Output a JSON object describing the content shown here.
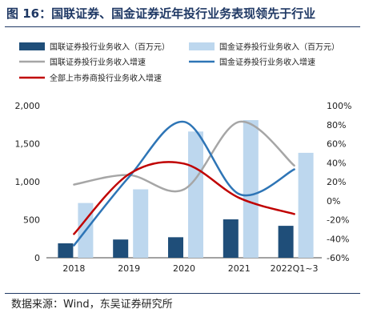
{
  "figure": {
    "title": "图 16：国联证券、国金证券近年投行业务表现领先于行业",
    "source": "数据来源：Wind，东吴证券研究所"
  },
  "colors": {
    "guolian_bar": "#1f4e79",
    "guojin_bar": "#bdd7ee",
    "guolian_line": "#a6a6a6",
    "guojin_line": "#2e75b6",
    "industry_line": "#c00000"
  },
  "chart_data": {
    "type": "bar",
    "categories": [
      "2018",
      "2019",
      "2020",
      "2021",
      "2022Q1~3"
    ],
    "y_left": {
      "min": 0,
      "max": 2000,
      "ticks": [
        0,
        500,
        1000,
        1500,
        2000
      ],
      "tick_labels": [
        "0",
        "500",
        "1,000",
        "1,500",
        "2,000"
      ]
    },
    "y_right": {
      "min": -60,
      "max": 100,
      "ticks": [
        -60,
        -40,
        -20,
        0,
        20,
        40,
        60,
        80,
        100
      ],
      "tick_labels": [
        "-60%",
        "-40%",
        "-20%",
        "0%",
        "20%",
        "40%",
        "60%",
        "80%",
        "100%"
      ]
    },
    "series": [
      {
        "name": "国联证券投行业务收入（百万元）",
        "type": "bar",
        "axis": "left",
        "values": [
          190,
          240,
          270,
          505,
          420
        ]
      },
      {
        "name": "国金证券投行业务收入（百万元）",
        "type": "bar",
        "axis": "left",
        "values": [
          720,
          900,
          1660,
          1810,
          1380
        ]
      },
      {
        "name": "国联证券投行业务收入增速",
        "type": "line",
        "axis": "right",
        "values": [
          17,
          27,
          12,
          83,
          37
        ]
      },
      {
        "name": "国金证券投行业务收入增速",
        "type": "line",
        "axis": "right",
        "values": [
          -47,
          25,
          83,
          7,
          33
        ]
      },
      {
        "name": "全部上市券商投行业务收入增速",
        "type": "line",
        "axis": "right",
        "values": [
          -35,
          28,
          39,
          3,
          -14
        ]
      }
    ],
    "grid": false,
    "legend_position": "top"
  }
}
